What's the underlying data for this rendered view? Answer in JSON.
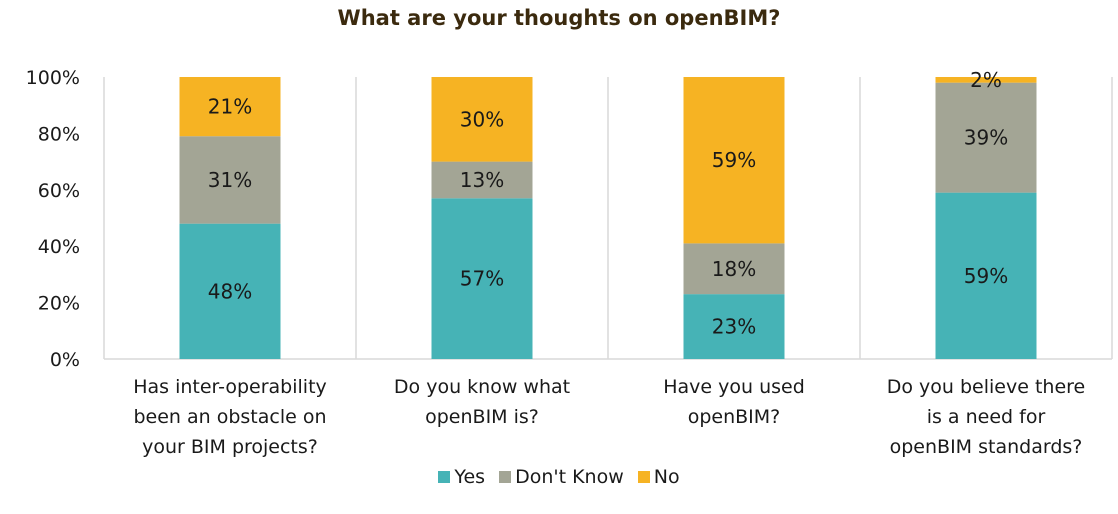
{
  "chart_data": {
    "type": "bar",
    "stacked": true,
    "percent": true,
    "title": "What are your thoughts on openBIM?",
    "title_color": "#3b2a0e",
    "categories": [
      [
        "Has inter-operability",
        "been an obstacle on",
        "your BIM projects?"
      ],
      [
        "Do you know what",
        "openBIM is?"
      ],
      [
        "Have you used",
        "openBIM?"
      ],
      [
        "Do you believe there",
        "is a need for",
        "openBIM standards?"
      ]
    ],
    "series": [
      {
        "name": "Yes",
        "color": "#46b3b6",
        "values": [
          48,
          57,
          23,
          59
        ],
        "labels": [
          "48%",
          "57%",
          "23%",
          "59%"
        ]
      },
      {
        "name": "Don't Know",
        "color": "#a3a595",
        "values": [
          31,
          13,
          18,
          39
        ],
        "labels": [
          "31%",
          "13%",
          "18%",
          "39%"
        ]
      },
      {
        "name": "No",
        "color": "#f6b323",
        "values": [
          21,
          30,
          59,
          2
        ],
        "labels": [
          "21%",
          "30%",
          "59%",
          "2%"
        ]
      }
    ],
    "ylim": [
      0,
      100
    ],
    "y_ticks": [
      "0%",
      "20%",
      "40%",
      "60%",
      "80%",
      "100%"
    ],
    "gridlines": false,
    "category_separators": true,
    "legend_position": "bottom"
  }
}
